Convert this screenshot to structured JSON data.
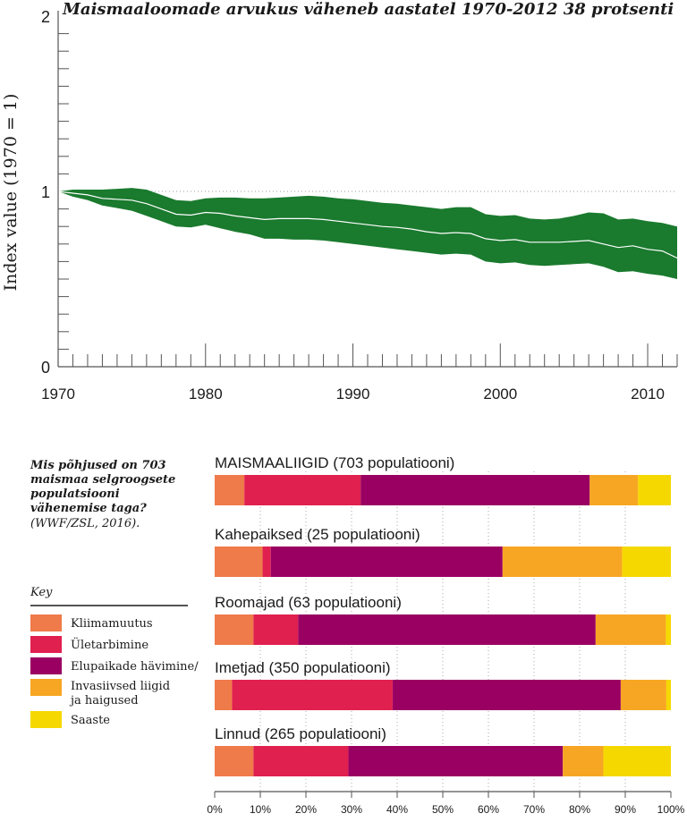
{
  "colors": {
    "band": "#1a7a2e",
    "center_line": "#ffffff",
    "climate": "#ef7a4a",
    "overexploitation": "#e0204f",
    "habitat": "#9a0062",
    "invasive": "#f7a623",
    "pollution": "#f5d800",
    "axis": "#555555",
    "text": "#1a1a1a"
  },
  "chart_data": [
    {
      "type": "area",
      "title": "Maismaaloomade arvukus väheneb aastatel 1970-2012 38 protsenti",
      "ylabel": "Index value (1970 = 1)",
      "xlabel": "",
      "xlim": [
        1970,
        2012
      ],
      "ylim": [
        0,
        2
      ],
      "x_ticks": [
        "1970",
        "1980",
        "1990",
        "2000",
        "2010"
      ],
      "y_ticks": [
        "0",
        "1",
        "2"
      ],
      "reference_line": 1,
      "series": [
        {
          "name": "index",
          "x": [
            1970,
            1971,
            1972,
            1973,
            1974,
            1975,
            1976,
            1977,
            1978,
            1979,
            1980,
            1981,
            1982,
            1983,
            1984,
            1985,
            1986,
            1987,
            1988,
            1989,
            1990,
            1991,
            1992,
            1993,
            1994,
            1995,
            1996,
            1997,
            1998,
            1999,
            2000,
            2001,
            2002,
            2003,
            2004,
            2005,
            2006,
            2007,
            2008,
            2009,
            2010,
            2011,
            2012
          ],
          "values": [
            1.0,
            0.99,
            0.98,
            0.96,
            0.955,
            0.95,
            0.93,
            0.9,
            0.87,
            0.865,
            0.88,
            0.875,
            0.86,
            0.85,
            0.84,
            0.845,
            0.845,
            0.845,
            0.84,
            0.83,
            0.82,
            0.81,
            0.8,
            0.795,
            0.785,
            0.77,
            0.76,
            0.765,
            0.76,
            0.73,
            0.72,
            0.725,
            0.71,
            0.71,
            0.71,
            0.715,
            0.72,
            0.7,
            0.68,
            0.69,
            0.67,
            0.66,
            0.62
          ]
        },
        {
          "name": "upper",
          "values": [
            1.0,
            1.01,
            1.01,
            1.01,
            1.015,
            1.02,
            1.01,
            0.98,
            0.95,
            0.945,
            0.96,
            0.965,
            0.965,
            0.96,
            0.96,
            0.965,
            0.97,
            0.975,
            0.97,
            0.96,
            0.955,
            0.945,
            0.935,
            0.93,
            0.92,
            0.91,
            0.9,
            0.91,
            0.91,
            0.87,
            0.86,
            0.865,
            0.845,
            0.84,
            0.845,
            0.86,
            0.88,
            0.875,
            0.84,
            0.845,
            0.83,
            0.82,
            0.8
          ]
        },
        {
          "name": "lower",
          "values": [
            1.0,
            0.97,
            0.95,
            0.92,
            0.905,
            0.89,
            0.86,
            0.83,
            0.8,
            0.795,
            0.81,
            0.79,
            0.77,
            0.755,
            0.73,
            0.73,
            0.725,
            0.725,
            0.72,
            0.71,
            0.7,
            0.69,
            0.68,
            0.67,
            0.66,
            0.65,
            0.64,
            0.645,
            0.64,
            0.6,
            0.59,
            0.595,
            0.58,
            0.575,
            0.58,
            0.585,
            0.59,
            0.57,
            0.54,
            0.545,
            0.53,
            0.52,
            0.5
          ]
        }
      ]
    },
    {
      "type": "bar",
      "orientation": "horizontal",
      "stacked": true,
      "x_ticks": [
        "0%",
        "10%",
        "20%",
        "30%",
        "40%",
        "50%",
        "60%",
        "70%",
        "80%",
        "90%",
        "100%"
      ],
      "categories": [
        "MAISMAALIIGID (703 populatiooni)",
        "Kahepaiksed (25 populatiooni)",
        "Roomajad (63 populatiooni)",
        "Imetjad (350 populatiooni)",
        "Linnud (265 populatiooni)"
      ],
      "series": [
        {
          "name": "Kliimamuutus",
          "values": [
            6.5,
            10.5,
            8.5,
            3.8,
            8.5
          ]
        },
        {
          "name": "Ületarbimine",
          "values": [
            25.5,
            1.8,
            9.8,
            35.2,
            20.8
          ]
        },
        {
          "name": "Elupaikade hävimine/",
          "values": [
            50.2,
            50.8,
            65.2,
            50.0,
            47.0
          ]
        },
        {
          "name": "Invasiivsed liigid ja haigused",
          "values": [
            10.6,
            26.2,
            15.4,
            10.0,
            8.9
          ]
        },
        {
          "name": "Saaste",
          "values": [
            7.2,
            10.7,
            1.1,
            1.0,
            14.8
          ]
        }
      ]
    }
  ],
  "sidebar": {
    "question": "Mis põhjused on 703 maismaa selgroogsete populatsiooni vähenemise taga?",
    "source": "(WWF/ZSL, 2016).",
    "key_title": "Key",
    "legend": [
      {
        "label": "Kliimamuutus"
      },
      {
        "label": "Ületarbimine"
      },
      {
        "label": "Elupaikade hävimine/"
      },
      {
        "label": "Invasiivsed liigid ja haigused"
      },
      {
        "label": "Saaste"
      }
    ]
  }
}
